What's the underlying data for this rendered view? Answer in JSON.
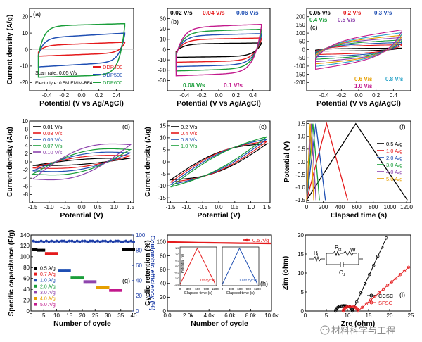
{
  "figure": {
    "watermark": "材料科学与工程"
  },
  "chart_data": [
    {
      "type": "line",
      "id": "a",
      "panel_label": "(a)",
      "xlabel": "Potential (V vs Ag/AgCl)",
      "ylabel": "Current density (A/g)",
      "xlim": [
        -0.6,
        0.6
      ],
      "ylim": [
        -25,
        25
      ],
      "xticks": [
        -0.4,
        -0.2,
        0.0,
        0.2,
        0.4
      ],
      "yticks": [
        -20,
        -10,
        0,
        10,
        20
      ],
      "annotations": [
        "Scan rate: 0.05 V/s",
        "Electrolyte: 0.5M EMIM-BF4"
      ],
      "legend_position": "bottom-right",
      "series": [
        {
          "name": "DDP400",
          "color": "#e41a1c",
          "top": 3.5,
          "bottom": -3.0,
          "slope": 4.0
        },
        {
          "name": "DDP500",
          "color": "#1f4fb3",
          "top": 8.5,
          "bottom": -9.0,
          "slope": 6.0
        },
        {
          "name": "DDP600",
          "color": "#1a9e3a",
          "top": 15.0,
          "bottom": -16.0,
          "slope": 3.0
        }
      ]
    },
    {
      "type": "line",
      "id": "b",
      "panel_label": "(b)",
      "xlabel": "Potential (V vs Ag/AgCl)",
      "ylabel": "",
      "xlim": [
        -0.6,
        0.6
      ],
      "ylim": [
        -40,
        40
      ],
      "xticks": [
        -0.4,
        -0.2,
        0.0,
        0.2,
        0.4
      ],
      "yticks": [
        -30,
        -20,
        -10,
        0,
        10,
        20,
        30
      ],
      "legend_position": "top and bottom",
      "series": [
        {
          "name": "0.02 V/s",
          "color": "#000000",
          "top": 6.0,
          "bottom": -7.0,
          "slope": 2.0
        },
        {
          "name": "0.04 V/s",
          "color": "#e41a1c",
          "top": 10.5,
          "bottom": -11.5,
          "slope": 3.0
        },
        {
          "name": "0.06 V/s",
          "color": "#1f4fb3",
          "top": 14.5,
          "bottom": -15.5,
          "slope": 4.0
        },
        {
          "name": "0.08 V/s",
          "color": "#1a9e3a",
          "top": 18.5,
          "bottom": -19.5,
          "slope": 5.0
        },
        {
          "name": "0.1 V/s",
          "color": "#c2188c",
          "top": 23.0,
          "bottom": -24.0,
          "slope": 6.0
        }
      ]
    },
    {
      "type": "line",
      "id": "c",
      "panel_label": "(c)",
      "xlabel": "Potential (V vs Ag/AgCl)",
      "ylabel": "",
      "xlim": [
        -0.6,
        0.6
      ],
      "ylim": [
        -250,
        250
      ],
      "xticks": [
        -0.4,
        -0.2,
        0.0,
        0.2,
        0.4
      ],
      "yticks": [
        -200,
        -150,
        -100,
        -50,
        0,
        50,
        100,
        150,
        200
      ],
      "legend_position": "top and bottom",
      "series": [
        {
          "name": "0.05 V/s",
          "color": "#000000",
          "top": 8,
          "bottom": -8,
          "slope": 5
        },
        {
          "name": "0.2 V/s",
          "color": "#e41a1c",
          "top": 25,
          "bottom": -25,
          "slope": 20
        },
        {
          "name": "0.3 V/s",
          "color": "#1f4fb3",
          "top": 35,
          "bottom": -35,
          "slope": 35
        },
        {
          "name": "0.4 V/s",
          "color": "#1a9e3a",
          "top": 45,
          "bottom": -45,
          "slope": 55
        },
        {
          "name": "0.5 V/s",
          "color": "#8e44ad",
          "top": 55,
          "bottom": -55,
          "slope": 75
        },
        {
          "name": "0.6 V/s",
          "color": "#e69f00",
          "top": 62,
          "bottom": -62,
          "slope": 100
        },
        {
          "name": "0.8 V/s",
          "color": "#29a3c8",
          "top": 70,
          "bottom": -70,
          "slope": 130
        },
        {
          "name": "1.0 V/s",
          "color": "#c2188c",
          "top": 80,
          "bottom": -80,
          "slope": 160
        }
      ]
    },
    {
      "type": "line",
      "id": "d",
      "panel_label": "(d)",
      "xlabel": "Potential (V)",
      "ylabel": "Current density (A/g)",
      "xlim": [
        -1.6,
        1.6
      ],
      "ylim": [
        -10,
        10
      ],
      "xticks": [
        -1.5,
        -1.0,
        -0.5,
        0.0,
        0.5,
        1.0,
        1.5
      ],
      "yticks": [
        -8,
        -6,
        -4,
        -2,
        0,
        2,
        4,
        6,
        8,
        10
      ],
      "legend_position": "top-left",
      "series": [
        {
          "name": "0.01 V/s",
          "color": "#000000",
          "top": 0.6,
          "bottom": -0.6,
          "slope": 0.9
        },
        {
          "name": "0.03 V/s",
          "color": "#e41a1c",
          "top": 1.2,
          "bottom": -1.2,
          "slope": 1.5
        },
        {
          "name": "0.05 V/s",
          "color": "#1f4fb3",
          "top": 1.8,
          "bottom": -1.8,
          "slope": 2.2
        },
        {
          "name": "0.07 V/s",
          "color": "#1a9e3a",
          "top": 2.4,
          "bottom": -2.4,
          "slope": 3.0
        },
        {
          "name": "0.10 V/s",
          "color": "#8e44ad",
          "top": 3.2,
          "bottom": -3.2,
          "slope": 4.2
        }
      ]
    },
    {
      "type": "line",
      "id": "e",
      "panel_label": "(e)",
      "xlabel": "Potential (V)",
      "ylabel": "Current density (A/g)",
      "xlim": [
        -1.6,
        1.6
      ],
      "ylim": [
        -17,
        17
      ],
      "xticks": [
        -1.5,
        -1.0,
        -0.5,
        0.0,
        0.5,
        1.0,
        1.5
      ],
      "yticks": [
        -15,
        -10,
        -5,
        0,
        5,
        10,
        15
      ],
      "legend_position": "top-left",
      "series": [
        {
          "name": "0.2 V/s",
          "color": "#000000",
          "top": 4.0,
          "bottom": -4.0,
          "slope": 7.5
        },
        {
          "name": "0.4 V/s",
          "color": "#e41a1c",
          "top": 3.8,
          "bottom": -3.8,
          "slope": 8.5
        },
        {
          "name": "0.8 V/s",
          "color": "#1f4fb3",
          "top": 3.4,
          "bottom": -3.4,
          "slope": 9.5
        },
        {
          "name": "1.0 V/s",
          "color": "#1a9e3a",
          "top": 3.0,
          "bottom": -3.0,
          "slope": 10.5
        }
      ]
    },
    {
      "type": "line",
      "id": "f",
      "panel_label": "(f)",
      "xlabel": "Elapsed time (s)",
      "ylabel": "Potential (V)",
      "xlim": [
        0,
        1250
      ],
      "ylim": [
        -1.6,
        1.6
      ],
      "xticks": [
        0,
        200,
        400,
        600,
        800,
        1000,
        1200
      ],
      "yticks": [
        -1.5,
        -1.0,
        -0.5,
        0.0,
        0.5,
        1.0,
        1.5
      ],
      "legend_position": "right",
      "series": [
        {
          "name": "0.5 A/g",
          "color": "#000000",
          "half": 590
        },
        {
          "name": "1.0 A/g",
          "color": "#e41a1c",
          "half": 240
        },
        {
          "name": "2.0 A/g",
          "color": "#1f4fb3",
          "half": 110
        },
        {
          "name": "3.0 A/g",
          "color": "#1a9e3a",
          "half": 75
        },
        {
          "name": "4.0 A/g",
          "color": "#8e44ad",
          "half": 55
        },
        {
          "name": "5.0 A/g",
          "color": "#e69f00",
          "half": 42
        }
      ]
    },
    {
      "type": "scatter",
      "id": "g",
      "panel_label": "(g)",
      "xlabel": "Number of cycle",
      "ylabel": "Specific capacitance (F/g)",
      "y2label": "Coulombic efficiency (%)",
      "xlim": [
        0,
        40
      ],
      "ylim": [
        0,
        140
      ],
      "y2lim": [
        0,
        100
      ],
      "xticks": [
        0,
        5,
        10,
        15,
        20,
        25,
        30,
        35,
        40
      ],
      "yticks": [
        0,
        20,
        40,
        60,
        80,
        100,
        120,
        140
      ],
      "y2ticks": [
        0,
        20,
        40,
        60,
        80,
        100
      ],
      "legend_position": "bottom-left",
      "series": [
        {
          "name": "0.5 A/g",
          "color": "#000000",
          "cycles": [
            1,
            2,
            3,
            4,
            5,
            36,
            37,
            38,
            39,
            40
          ],
          "values": [
            113,
            113,
            112,
            112,
            112,
            113,
            113,
            113,
            113,
            113
          ]
        },
        {
          "name": "0.7 A/g",
          "color": "#e41a1c",
          "cycles": [
            6,
            7,
            8,
            9,
            10
          ],
          "values": [
            106,
            106,
            106,
            106,
            106
          ]
        },
        {
          "name": "1.0 A/g",
          "color": "#1f4fb3",
          "cycles": [
            11,
            12,
            13,
            14,
            15
          ],
          "values": [
            75,
            75,
            75,
            75,
            75
          ]
        },
        {
          "name": "2.0 A/g",
          "color": "#1a9e3a",
          "cycles": [
            16,
            17,
            18,
            19,
            20
          ],
          "values": [
            62,
            62,
            62,
            62,
            62
          ]
        },
        {
          "name": "3.0 A/g",
          "color": "#8e44ad",
          "cycles": [
            21,
            22,
            23,
            24,
            25
          ],
          "values": [
            54,
            54,
            54,
            54,
            54
          ]
        },
        {
          "name": "4.0 A/g",
          "color": "#e69f00",
          "cycles": [
            26,
            27,
            28,
            29,
            30
          ],
          "values": [
            43,
            43,
            43,
            43,
            43
          ]
        },
        {
          "name": "5.0 A/g",
          "color": "#c2188c",
          "cycles": [
            31,
            32,
            33,
            34,
            35
          ],
          "values": [
            38,
            38,
            38,
            38,
            38
          ]
        }
      ],
      "efficiency": {
        "color": "#1f3fa8",
        "cycles": [
          1,
          2,
          3,
          4,
          5,
          6,
          7,
          8,
          9,
          10,
          11,
          12,
          13,
          14,
          15,
          16,
          17,
          18,
          19,
          20,
          21,
          22,
          23,
          24,
          25,
          26,
          27,
          28,
          29,
          30,
          31,
          32,
          33,
          34,
          35,
          36,
          37,
          38,
          39,
          40
        ],
        "values": [
          92,
          91,
          91,
          92,
          91,
          92,
          91,
          92,
          91,
          92,
          91,
          92,
          92,
          91,
          92,
          92,
          91,
          92,
          91,
          92,
          92,
          91,
          92,
          92,
          91,
          92,
          91,
          92,
          92,
          91,
          92,
          91,
          92,
          92,
          91,
          91,
          92,
          91,
          92,
          91
        ]
      }
    },
    {
      "type": "line",
      "id": "h",
      "panel_label": "(h)",
      "xlabel": "Number of cycle",
      "ylabel": "Cyclic retention (%)",
      "xlim": [
        0,
        10000
      ],
      "ylim": [
        0,
        110
      ],
      "xticks": [
        0,
        2000,
        4000,
        6000,
        8000,
        10000
      ],
      "xticklabels": [
        "0.0",
        "2.0k",
        "4.0k",
        "6.0k",
        "8.0k",
        "10.0k"
      ],
      "yticks": [
        0,
        20,
        40,
        60,
        80,
        100
      ],
      "legend_position": "top-right",
      "series": [
        {
          "name": "0.5 A/g",
          "color": "#e41a1c",
          "x": [
            0,
            1000,
            2000,
            3000,
            4000,
            5000,
            6000,
            7000,
            8000,
            9000,
            10000
          ],
          "values": [
            100,
            99.6,
            99.3,
            99.0,
            98.8,
            98.6,
            98.4,
            98.2,
            98.1,
            97.9,
            97.8
          ]
        }
      ],
      "insets": [
        {
          "label": "1st cycle",
          "color": "#e41a1c",
          "ylabel": "Potential (V)",
          "xlabel": "Elapsed time (s)",
          "xticks": [
            0,
            300,
            600,
            900,
            1200
          ],
          "ylim": [
            -1.6,
            1.6
          ],
          "yticks": [
            -1.5,
            -1.0,
            -0.5,
            0.0,
            0.5,
            1.0,
            1.5
          ],
          "half": 590
        },
        {
          "label": "Last cycle",
          "color": "#1f4fb3",
          "ylabel": "",
          "xlabel": "Elapsed time (s)",
          "xticks": [
            0,
            300,
            600,
            900,
            1200
          ],
          "ylim": [
            -1.6,
            1.6
          ],
          "half": 590
        }
      ]
    },
    {
      "type": "line",
      "id": "i",
      "panel_label": "(i)",
      "xlabel": "Zre (ohm)",
      "ylabel": "Zim (ohm)",
      "xlim": [
        0,
        25
      ],
      "ylim": [
        0,
        20
      ],
      "xticks": [
        0,
        5,
        10,
        15,
        20,
        25
      ],
      "yticks": [
        0,
        5,
        10,
        15,
        20
      ],
      "legend_position": "bottom-right",
      "circuit_labels": {
        "r1": "R",
        "r1_sub": "l",
        "rct": "R",
        "rct_sub": "ct",
        "w": "W",
        "cdl": "C",
        "cdl_sub": "dl"
      },
      "series": [
        {
          "name": "CCSC",
          "color": "#000000",
          "r0": 7.2,
          "rct": 4.0,
          "k": 4.0
        },
        {
          "name": "SFSC",
          "color": "#e41a1c",
          "r0": 9.0,
          "rct": 3.5,
          "k": 1.6
        }
      ]
    }
  ]
}
